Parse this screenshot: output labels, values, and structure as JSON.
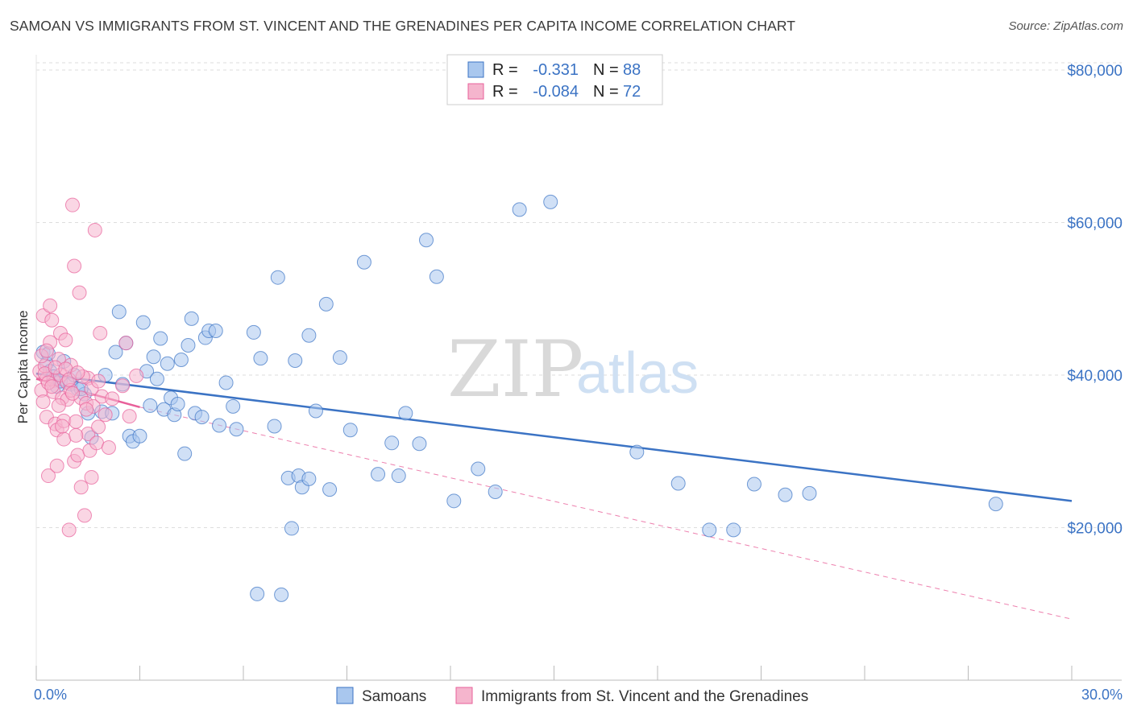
{
  "title": "SAMOAN VS IMMIGRANTS FROM ST. VINCENT AND THE GRENADINES PER CAPITA INCOME CORRELATION CHART",
  "source": "Source: ZipAtlas.com",
  "watermark": {
    "zip": "ZIP",
    "atlas": "atlas"
  },
  "colors": {
    "blue": "#3b73c4",
    "blue_fill": "#a9c7ee",
    "pink": "#e8609a",
    "pink_fill": "#f5b5cd",
    "grid": "#dddddd"
  },
  "legend": {
    "r_label": "R =",
    "n_label": "N =",
    "rows": [
      {
        "r": "-0.331",
        "n": "88"
      },
      {
        "r": "-0.084",
        "n": "72"
      }
    ]
  },
  "chart_data": {
    "type": "scatter",
    "title": "SAMOAN VS IMMIGRANTS FROM ST. VINCENT AND THE GRENADINES PER CAPITA INCOME CORRELATION CHART",
    "xlabel": "",
    "ylabel": "Per Capita Income",
    "xlim": [
      0,
      30
    ],
    "ylim": [
      0,
      82000
    ],
    "x_tick_labels": [
      "0.0%",
      "30.0%"
    ],
    "y_ticks": [
      20000,
      40000,
      60000,
      80000
    ],
    "y_tick_labels": [
      "$20,000",
      "$40,000",
      "$60,000",
      "$80,000"
    ],
    "grid": true,
    "legend_position": "top-center",
    "series": [
      {
        "name": "Samoans",
        "color": "#3b73c4",
        "trend": {
          "x": [
            0.0,
            30.0
          ],
          "y": [
            40200,
            23500
          ]
        },
        "points": [
          [
            0.2,
            43000
          ],
          [
            0.3,
            41500
          ],
          [
            0.4,
            40500
          ],
          [
            0.5,
            39800
          ],
          [
            0.6,
            38500
          ],
          [
            0.7,
            39200
          ],
          [
            0.8,
            41800
          ],
          [
            1.0,
            38800
          ],
          [
            1.1,
            40000
          ],
          [
            1.2,
            38200
          ],
          [
            1.4,
            37500
          ],
          [
            1.5,
            35000
          ],
          [
            1.6,
            31800
          ],
          [
            1.9,
            35200
          ],
          [
            2.0,
            40000
          ],
          [
            2.3,
            43000
          ],
          [
            2.4,
            48300
          ],
          [
            2.5,
            38800
          ],
          [
            2.6,
            44200
          ],
          [
            2.7,
            32000
          ],
          [
            2.8,
            31300
          ],
          [
            3.0,
            32000
          ],
          [
            3.1,
            46900
          ],
          [
            3.2,
            40500
          ],
          [
            3.3,
            36000
          ],
          [
            3.4,
            42400
          ],
          [
            3.5,
            39500
          ],
          [
            3.6,
            44800
          ],
          [
            3.7,
            35500
          ],
          [
            3.8,
            41500
          ],
          [
            3.9,
            37000
          ],
          [
            4.0,
            34800
          ],
          [
            4.1,
            36200
          ],
          [
            4.3,
            29700
          ],
          [
            4.4,
            43900
          ],
          [
            4.5,
            47400
          ],
          [
            4.6,
            35000
          ],
          [
            4.8,
            34500
          ],
          [
            4.9,
            44900
          ],
          [
            5.0,
            45800
          ],
          [
            5.2,
            45800
          ],
          [
            5.3,
            33400
          ],
          [
            5.7,
            35900
          ],
          [
            5.8,
            32900
          ],
          [
            6.3,
            45600
          ],
          [
            6.4,
            11300
          ],
          [
            6.5,
            42200
          ],
          [
            6.9,
            33300
          ],
          [
            7.0,
            52800
          ],
          [
            7.1,
            11200
          ],
          [
            7.3,
            26500
          ],
          [
            7.4,
            19900
          ],
          [
            7.5,
            41900
          ],
          [
            7.6,
            26800
          ],
          [
            7.7,
            25300
          ],
          [
            7.9,
            26400
          ],
          [
            7.9,
            45200
          ],
          [
            8.1,
            35300
          ],
          [
            8.4,
            49300
          ],
          [
            8.5,
            25000
          ],
          [
            8.8,
            42300
          ],
          [
            9.1,
            32800
          ],
          [
            9.5,
            54800
          ],
          [
            10.3,
            31100
          ],
          [
            10.5,
            26800
          ],
          [
            10.7,
            35000
          ],
          [
            11.1,
            31000
          ],
          [
            11.3,
            57700
          ],
          [
            11.6,
            52900
          ],
          [
            12.1,
            23500
          ],
          [
            12.8,
            27700
          ],
          [
            13.3,
            24700
          ],
          [
            14.0,
            61700
          ],
          [
            14.9,
            62700
          ],
          [
            17.4,
            29900
          ],
          [
            18.6,
            25800
          ],
          [
            19.5,
            19700
          ],
          [
            20.2,
            19700
          ],
          [
            20.8,
            25700
          ],
          [
            21.7,
            24300
          ],
          [
            22.4,
            24500
          ],
          [
            27.8,
            23100
          ],
          [
            0.35,
            42800
          ],
          [
            1.3,
            38200
          ],
          [
            2.2,
            35000
          ],
          [
            4.2,
            42000
          ],
          [
            5.5,
            39000
          ],
          [
            9.9,
            27000
          ]
        ]
      },
      {
        "name": "Immigrants from St. Vincent and the Grenadines",
        "color": "#e8609a",
        "trend": {
          "x": [
            0.0,
            3.0
          ],
          "y": [
            39500,
            35800
          ]
        },
        "trend_dashed": {
          "x": [
            3.0,
            30.0
          ],
          "y": [
            35800,
            8000
          ]
        },
        "points": [
          [
            0.1,
            40500
          ],
          [
            0.15,
            38000
          ],
          [
            0.2,
            36500
          ],
          [
            0.2,
            47800
          ],
          [
            0.25,
            41200
          ],
          [
            0.3,
            39500
          ],
          [
            0.3,
            34500
          ],
          [
            0.35,
            26800
          ],
          [
            0.4,
            44300
          ],
          [
            0.4,
            49100
          ],
          [
            0.45,
            47200
          ],
          [
            0.5,
            39300
          ],
          [
            0.5,
            37800
          ],
          [
            0.55,
            33600
          ],
          [
            0.6,
            32800
          ],
          [
            0.6,
            28100
          ],
          [
            0.65,
            42100
          ],
          [
            0.7,
            45500
          ],
          [
            0.7,
            40000
          ],
          [
            0.75,
            37000
          ],
          [
            0.8,
            34000
          ],
          [
            0.8,
            31600
          ],
          [
            0.85,
            44600
          ],
          [
            0.9,
            39000
          ],
          [
            0.9,
            36800
          ],
          [
            0.95,
            19700
          ],
          [
            1.0,
            41300
          ],
          [
            1.0,
            38000
          ],
          [
            1.05,
            62300
          ],
          [
            1.1,
            54300
          ],
          [
            1.1,
            28700
          ],
          [
            1.15,
            33900
          ],
          [
            1.2,
            29500
          ],
          [
            1.25,
            50800
          ],
          [
            1.3,
            37000
          ],
          [
            1.3,
            25300
          ],
          [
            1.4,
            21600
          ],
          [
            1.45,
            36300
          ],
          [
            1.5,
            39600
          ],
          [
            1.5,
            32300
          ],
          [
            1.55,
            30100
          ],
          [
            1.6,
            26600
          ],
          [
            1.65,
            35900
          ],
          [
            1.7,
            59000
          ],
          [
            1.75,
            31100
          ],
          [
            1.8,
            33200
          ],
          [
            1.85,
            45500
          ],
          [
            1.9,
            37200
          ],
          [
            2.0,
            34800
          ],
          [
            2.1,
            30500
          ],
          [
            0.15,
            42500
          ],
          [
            0.25,
            40200
          ],
          [
            0.35,
            39000
          ],
          [
            0.45,
            38500
          ],
          [
            0.55,
            41000
          ],
          [
            0.65,
            36000
          ],
          [
            0.75,
            33300
          ],
          [
            0.85,
            40800
          ],
          [
            0.95,
            39400
          ],
          [
            1.05,
            37600
          ],
          [
            1.15,
            32100
          ],
          [
            1.35,
            39800
          ],
          [
            1.45,
            35500
          ],
          [
            1.6,
            38200
          ],
          [
            1.8,
            39200
          ],
          [
            2.2,
            36900
          ],
          [
            2.5,
            38600
          ],
          [
            2.6,
            44200
          ],
          [
            2.7,
            34600
          ],
          [
            2.9,
            39900
          ],
          [
            0.3,
            43200
          ],
          [
            1.2,
            40300
          ]
        ]
      }
    ]
  },
  "bottom_legend": {
    "items": [
      "Samoans",
      "Immigrants from St. Vincent and the Grenadines"
    ]
  }
}
